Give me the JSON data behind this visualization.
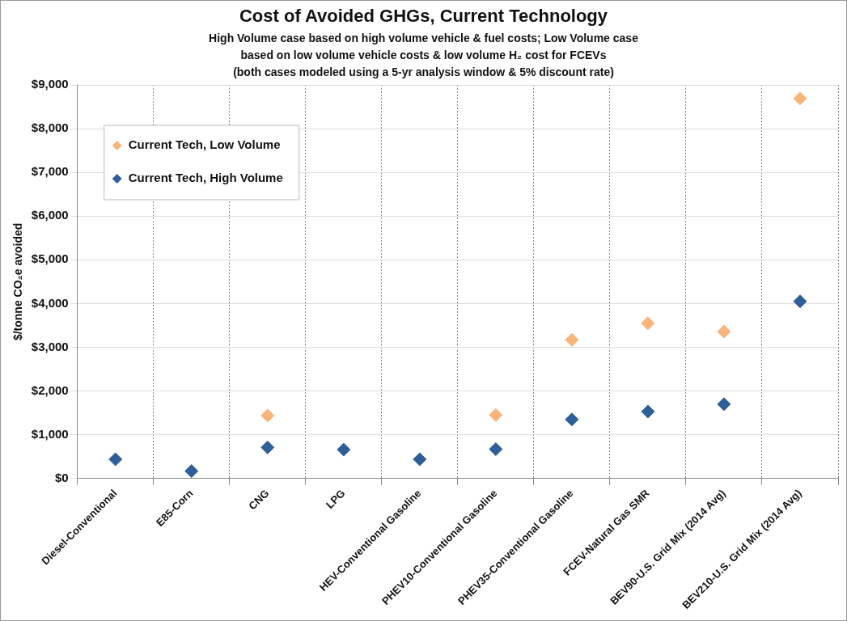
{
  "chart_data": {
    "type": "scatter",
    "title": "Cost of Avoided GHGs, Current Technology",
    "subtitle": "High Volume case based on high volume vehicle & fuel costs; Low Volume case\nbased on low volume vehicle costs & low volume H₂ cost for FCEVs\n(both cases modeled using a 5-yr analysis window & 5% discount rate)",
    "ylabel": "$/tonne CO₂e avoided",
    "categories": [
      "Diesel-Conventional",
      "E85-Corn",
      "CNG",
      "LPG",
      "HEV-Conventional Gasoline",
      "PHEV10-Conventional Gasoline",
      "PHEV35-Conventional Gasoline",
      "FCEV-Natural Gas SMR",
      "BEV90-U.S. Grid Mix (2014 Avg)",
      "BEV210-U.S. Grid Mix (2014 Avg)"
    ],
    "series": [
      {
        "name": "Current Tech, Low Volume",
        "color": "#f9b47a",
        "values": [
          null,
          null,
          1440,
          null,
          null,
          1450,
          3170,
          3550,
          3360,
          8690
        ]
      },
      {
        "name": "Current Tech, High Volume",
        "color": "#2f5f98",
        "values": [
          440,
          170,
          710,
          660,
          440,
          670,
          1350,
          1530,
          1700,
          4050
        ]
      }
    ],
    "ylim": [
      0,
      9000
    ],
    "yticks": [
      {
        "value": 0,
        "label": "$0"
      },
      {
        "value": 1000,
        "label": "$1,000"
      },
      {
        "value": 2000,
        "label": "$2,000"
      },
      {
        "value": 3000,
        "label": "$3,000"
      },
      {
        "value": 4000,
        "label": "$4,000"
      },
      {
        "value": 5000,
        "label": "$5,000"
      },
      {
        "value": 6000,
        "label": "$6,000"
      },
      {
        "value": 7000,
        "label": "$7,000"
      },
      {
        "value": 8000,
        "label": "$8,000"
      },
      {
        "value": 9000,
        "label": "$9,000"
      }
    ],
    "grid": true,
    "legend": "top left",
    "marker": "diamond"
  }
}
